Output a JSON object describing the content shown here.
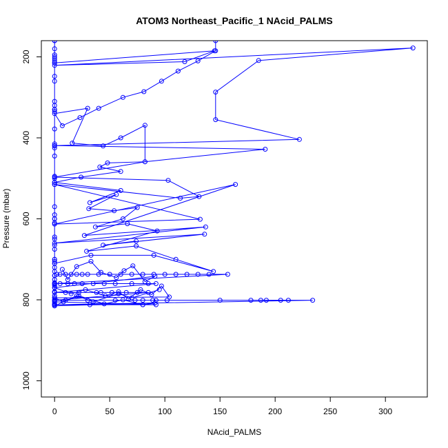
{
  "chart_data": {
    "type": "line",
    "title": "ATOM3 Northeast_Pacific_1 NAcid_PALMS",
    "xlabel": "NAcid_PALMS",
    "ylabel": "Pressure (mbar)",
    "xlim": [
      -12,
      338
    ],
    "ylim": [
      1040,
      160
    ],
    "y_inverted": true,
    "x_ticks": [
      0,
      50,
      100,
      150,
      200,
      250,
      300
    ],
    "y_ticks": [
      200,
      400,
      600,
      800,
      1000
    ],
    "grid": false,
    "legend": "none",
    "series_color": "#0000ff",
    "point_marker": "open-circle",
    "series": [
      {
        "x": [
          0,
          0,
          0,
          0,
          0,
          0,
          0,
          0,
          0,
          0,
          0,
          0,
          0,
          0,
          0,
          0,
          0,
          0,
          0,
          0,
          0,
          0,
          0,
          0,
          0,
          0,
          0,
          0,
          0,
          0,
          0,
          0,
          0,
          0,
          0,
          0,
          0,
          0,
          0,
          0,
          0,
          0,
          0,
          0,
          0,
          0,
          0,
          0,
          0,
          0,
          0,
          0,
          0,
          0,
          0,
          0,
          0,
          0,
          0,
          0
        ],
        "y": [
          160,
          180,
          195,
          205,
          210,
          215,
          248,
          310,
          320,
          330,
          335,
          378,
          415,
          425,
          445,
          495,
          510,
          515,
          570,
          590,
          600,
          610,
          645,
          650,
          665,
          675,
          700,
          705,
          710,
          720,
          730,
          740,
          750,
          758,
          762,
          765,
          770,
          780,
          790,
          795,
          800,
          803,
          806,
          810,
          812,
          160,
          200,
          260,
          330,
          420,
          500,
          600,
          700,
          740,
          760,
          780,
          800,
          810,
          812,
          815
        ]
      },
      {
        "x": [
          0,
          145,
          118,
          0,
          325,
          185,
          146,
          146,
          222,
          0,
          191,
          82,
          0,
          103,
          131,
          114,
          0,
          132,
          0,
          164,
          27,
          137,
          0,
          136,
          44,
          74
        ],
        "y": [
          215,
          185,
          212,
          221,
          178,
          209,
          287,
          355,
          404,
          419,
          428,
          459,
          497,
          505,
          545,
          549,
          515,
          601,
          613,
          515,
          641,
          620,
          660,
          638,
          665,
          655
        ]
      },
      {
        "x": [
          146,
          146,
          130,
          112,
          97,
          81,
          62,
          40,
          23,
          7,
          0,
          30,
          16,
          44,
          60,
          82,
          82,
          48,
          41,
          60,
          24,
          0,
          60,
          32,
          56,
          31,
          54,
          75,
          62,
          37,
          66,
          93,
          29,
          74,
          110,
          144,
          90,
          33,
          0
        ],
        "y": [
          160,
          185,
          210,
          235,
          260,
          286,
          300,
          327,
          350,
          370,
          340,
          327,
          413,
          420,
          400,
          369,
          459,
          462,
          472,
          483,
          497,
          510,
          530,
          560,
          540,
          575,
          580,
          572,
          600,
          620,
          612,
          630,
          680,
          667,
          700,
          730,
          690,
          690,
          710
        ]
      },
      {
        "x": [
          2,
          5,
          10,
          15,
          20,
          25,
          30,
          40,
          50,
          60,
          70,
          80,
          90,
          100,
          110,
          120,
          130,
          140,
          157,
          0,
          5,
          12,
          18,
          25,
          35,
          45,
          55,
          70,
          85,
          92,
          0,
          10,
          22,
          38,
          42,
          52,
          65,
          75,
          85,
          0,
          10,
          30,
          55,
          73,
          80,
          89,
          92,
          102,
          150,
          178,
          187,
          192,
          205,
          212,
          234,
          0,
          32,
          80,
          92,
          0
        ],
        "y": [
          737,
          737,
          737,
          737,
          737,
          737,
          737,
          737,
          737,
          737,
          737,
          737,
          737,
          737,
          737,
          737,
          737,
          737,
          737,
          760,
          760,
          760,
          760,
          760,
          760,
          760,
          760,
          760,
          760,
          760,
          782,
          782,
          782,
          782,
          782,
          782,
          782,
          782,
          782,
          801,
          801,
          801,
          801,
          801,
          801,
          801,
          801,
          801,
          801,
          801,
          801,
          801,
          801,
          801,
          801,
          812,
          812,
          812,
          812,
          805
        ]
      },
      {
        "x": [
          7,
          12,
          20,
          33,
          42,
          56,
          63,
          71,
          82,
          91,
          0,
          15,
          28,
          46,
          58,
          67,
          78,
          88,
          97,
          104,
          0,
          8,
          22,
          45,
          62,
          80,
          91,
          0,
          20,
          35,
          58,
          70,
          95
        ],
        "y": [
          725,
          750,
          718,
          705,
          732,
          745,
          728,
          716,
          755,
          742,
          770,
          785,
          775,
          790,
          780,
          798,
          775,
          787,
          766,
          793,
          795,
          805,
          790,
          810,
          800,
          812,
          808,
          815,
          790,
          805,
          785,
          795,
          775
        ]
      }
    ]
  }
}
